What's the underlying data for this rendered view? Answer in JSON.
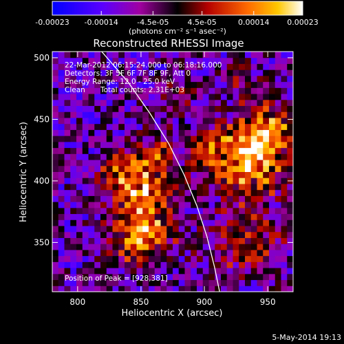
{
  "chart_data": {
    "type": "heatmap",
    "title": "Reconstructed RHESSI Image",
    "xlabel": "Heliocentric X (arcsec)",
    "ylabel": "Heliocentric Y (arcsec)",
    "xlim": [
      780,
      970
    ],
    "ylim": [
      310,
      505
    ],
    "x_ticks": [
      800,
      850,
      900,
      950
    ],
    "y_ticks": [
      350,
      400,
      450,
      500
    ],
    "colorbar": {
      "range": [
        -0.00023,
        0.00023
      ],
      "tick_values": [
        -0.00023,
        -0.00014,
        -4.5e-05,
        4.5e-05,
        0.00014,
        0.00023
      ],
      "tick_labels": [
        "-0.00023",
        "-0.00014",
        "-4.5e-05",
        "4.5e-05",
        "0.00014",
        "0.00023"
      ],
      "unit_label": "(photons cm⁻² s⁻¹ asec⁻²)",
      "colors": [
        "#0000ff",
        "#5a00ff",
        "#a000a0",
        "#000000",
        "#b40000",
        "#ff6a00",
        "#ffc800",
        "#ffffff"
      ]
    },
    "annotations": {
      "time_range": "22-Mar-2012 06:15:24.000 to 06:18:16.000",
      "detectors": "Detectors: 3F 5F 6F 7F 8F 9F, Att 0",
      "energy": "Energy Range: 12.0 - 25.0 keV",
      "clean_label": "Clean",
      "total_counts": "Total counts: 2.31E+03",
      "peak": "Position of Peak = [928,381]"
    },
    "limb_curve": [
      [
        819,
        505
      ],
      [
        840,
        480
      ],
      [
        857,
        455
      ],
      [
        872,
        430
      ],
      [
        884,
        405
      ],
      [
        894,
        380
      ],
      [
        902,
        355
      ],
      [
        908,
        330
      ],
      [
        912,
        310
      ]
    ],
    "grid_x": 40,
    "grid_y": 40,
    "sources": [
      {
        "x": 852,
        "y": 382,
        "sx": 15,
        "sy": 20,
        "amp": 1.0
      },
      {
        "x": 835,
        "y": 407,
        "sx": 12,
        "sy": 12,
        "amp": 0.6
      },
      {
        "x": 848,
        "y": 350,
        "sx": 18,
        "sy": 12,
        "amp": 0.7
      },
      {
        "x": 865,
        "y": 418,
        "sx": 10,
        "sy": 14,
        "amp": 0.55
      },
      {
        "x": 935,
        "y": 415,
        "sx": 18,
        "sy": 20,
        "amp": 1.0
      },
      {
        "x": 905,
        "y": 425,
        "sx": 12,
        "sy": 12,
        "amp": 0.7
      },
      {
        "x": 950,
        "y": 440,
        "sx": 14,
        "sy": 15,
        "amp": 0.8
      },
      {
        "x": 935,
        "y": 350,
        "sx": 22,
        "sy": 18,
        "amp": 0.55
      },
      {
        "x": 880,
        "y": 465,
        "sx": 10,
        "sy": 10,
        "amp": 0.45
      },
      {
        "x": 930,
        "y": 480,
        "sx": 12,
        "sy": 12,
        "amp": 0.25
      }
    ],
    "background": {
      "level": -0.35,
      "noise": 0.42
    }
  },
  "footer": {
    "date": "5-May-2014 19:13"
  }
}
